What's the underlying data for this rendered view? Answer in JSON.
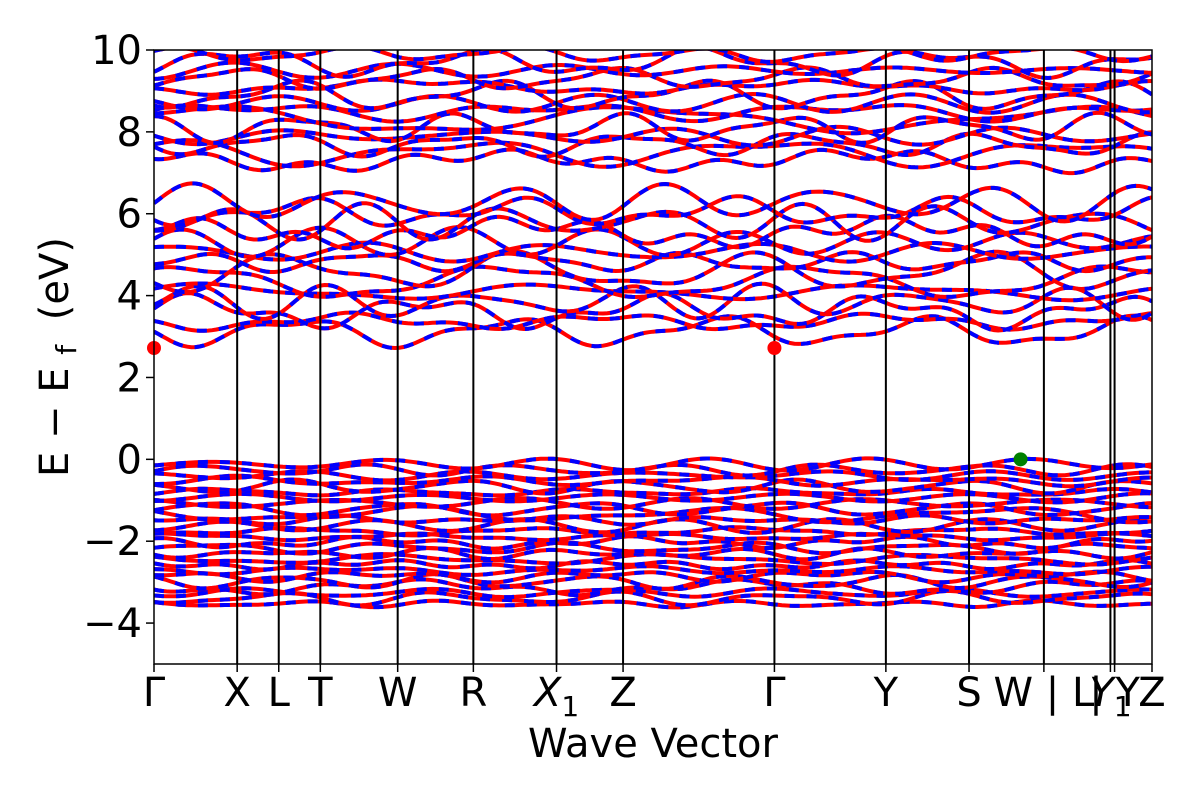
{
  "chart_data": {
    "type": "line",
    "xlabel": "Wave Vector",
    "ylabel": "E − E",
    "ylabel_subscript": "f",
    "ylabel_unit": "(eV)",
    "ylim": [
      -5,
      10
    ],
    "yticks": [
      {
        "value": 10,
        "label": "10"
      },
      {
        "value": 8,
        "label": "8"
      },
      {
        "value": 6,
        "label": "6"
      },
      {
        "value": 4,
        "label": "4"
      },
      {
        "value": 2,
        "label": "2"
      },
      {
        "value": 0,
        "label": "0"
      },
      {
        "value": -2,
        "label": "−2"
      },
      {
        "value": -4,
        "label": "−4"
      }
    ],
    "xlim": [
      0,
      12.0
    ],
    "kpoints": [
      {
        "label": "Γ",
        "sub": "",
        "x": 0.0
      },
      {
        "label": "X",
        "sub": "",
        "x": 1.0
      },
      {
        "label": "L",
        "sub": "",
        "x": 1.5
      },
      {
        "label": "T",
        "sub": "",
        "x": 2.0
      },
      {
        "label": "W",
        "sub": "",
        "x": 2.93
      },
      {
        "label": "R",
        "sub": "",
        "x": 3.84
      },
      {
        "label": "X",
        "sub": "1",
        "x": 4.84
      },
      {
        "label": "Z",
        "sub": "",
        "x": 5.64
      },
      {
        "label": "Γ",
        "sub": "",
        "x": 7.46
      },
      {
        "label": "Y",
        "sub": "",
        "x": 8.8
      },
      {
        "label": "S",
        "sub": "",
        "x": 9.8
      },
      {
        "label": "W | L",
        "sub": "",
        "x": 10.7
      },
      {
        "label": "Y",
        "sub": "1",
        "x": 11.5
      },
      {
        "label": "| Y",
        "sub": "",
        "x": 11.55
      },
      {
        "label": "Z",
        "sub": "",
        "x": 12.0
      }
    ],
    "series": [
      {
        "color": "#ff0000"
      },
      {
        "color": "#0000ff"
      }
    ],
    "band_regions": {
      "valence": [
        -3.6,
        -0.05
      ],
      "conduction_low": [
        2.7,
        6.6
      ],
      "conduction_high": [
        7.0,
        10.0
      ]
    },
    "markers": [
      {
        "kind": "cbm",
        "x": 0.0,
        "y": 2.72,
        "color": "#ff0000"
      },
      {
        "kind": "cbm",
        "x": 7.46,
        "y": 2.72,
        "color": "#ff0000"
      },
      {
        "kind": "vbm",
        "x": 10.42,
        "y": 0.0,
        "color": "#008000"
      }
    ]
  }
}
